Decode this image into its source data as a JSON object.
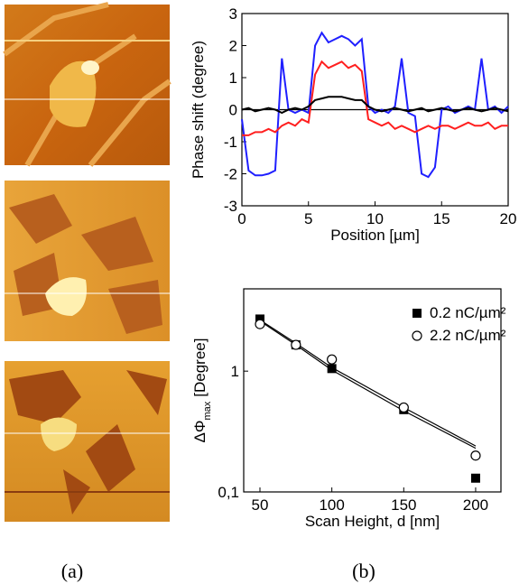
{
  "panel_labels": [
    "(a)",
    "(b)"
  ],
  "chart_data": [
    {
      "type": "line",
      "x_label": "Position  [µm]",
      "y_label": "Phase shift (degree)",
      "x": [
        0,
        0.5,
        1,
        1.5,
        2,
        2.5,
        3,
        3.5,
        4,
        4.5,
        5,
        5.5,
        6,
        6.5,
        7,
        7.5,
        8,
        8.5,
        9,
        9.5,
        10,
        10.5,
        11,
        11.5,
        12,
        12.5,
        13,
        13.5,
        14,
        14.5,
        15,
        15.5,
        16,
        16.5,
        17,
        17.5,
        18,
        18.5,
        19,
        19.5,
        20
      ],
      "series": [
        {
          "color": "#1f1fff",
          "values": [
            -0.3,
            -1.9,
            -2.05,
            -2.05,
            -2.0,
            -1.9,
            1.6,
            0.0,
            -0.1,
            0.0,
            -0.1,
            2.0,
            2.4,
            2.1,
            2.2,
            2.3,
            2.2,
            2.0,
            2.2,
            0.1,
            -0.1,
            0.0,
            -0.1,
            0.1,
            1.6,
            -0.1,
            -0.2,
            -2.0,
            -2.1,
            -1.8,
            0.0,
            0.1,
            -0.1,
            0.0,
            0.1,
            0.0,
            1.6,
            0.0,
            0.1,
            -0.1,
            0.1
          ]
        },
        {
          "color": "#ff1f1f",
          "values": [
            -0.8,
            -0.8,
            -0.7,
            -0.7,
            -0.6,
            -0.7,
            -0.5,
            -0.4,
            -0.5,
            -0.3,
            -0.4,
            1.1,
            1.5,
            1.3,
            1.4,
            1.5,
            1.3,
            1.4,
            1.2,
            -0.3,
            -0.4,
            -0.5,
            -0.4,
            -0.6,
            -0.5,
            -0.6,
            -0.7,
            -0.6,
            -0.5,
            -0.6,
            -0.5,
            -0.5,
            -0.6,
            -0.5,
            -0.4,
            -0.5,
            -0.5,
            -0.4,
            -0.6,
            -0.5,
            -0.5
          ]
        },
        {
          "color": "#000000",
          "values": [
            0.0,
            0.05,
            -0.05,
            0.0,
            0.05,
            0.0,
            -0.1,
            0.0,
            0.05,
            0.0,
            0.1,
            0.3,
            0.35,
            0.4,
            0.4,
            0.4,
            0.35,
            0.3,
            0.3,
            0.1,
            0.0,
            -0.05,
            0.0,
            0.05,
            0.0,
            -0.05,
            0.0,
            0.05,
            -0.05,
            0.0,
            0.05,
            0.0,
            -0.05,
            0.0,
            0.05,
            0.0,
            -0.05,
            0.0,
            0.05,
            0.0,
            -0.05
          ]
        }
      ],
      "xlim": [
        0,
        20
      ],
      "xticks": [
        0,
        5,
        10,
        15,
        20
      ],
      "ylim": [
        -3,
        3
      ],
      "yticks": [
        -3,
        -2,
        -1,
        0,
        1,
        2,
        3
      ],
      "zero_line": true
    },
    {
      "type": "scatter",
      "x_label": "Scan Height, d [nm]",
      "y_label": [
        "ΔΦ",
        "max",
        "[Degree]"
      ],
      "x": [
        50,
        75,
        100,
        150,
        200
      ],
      "series": [
        {
          "name": "0.2 nC/µm²",
          "marker": "square",
          "color": "#000000",
          "values": [
            2.7,
            1.65,
            1.05,
            0.48,
            0.13
          ],
          "fit": [
            2.6,
            1.65,
            1.02,
            0.47,
            0.23
          ]
        },
        {
          "name": "2.2 nC/µm²",
          "marker": "circle",
          "color": "#000000",
          "values": [
            2.45,
            1.65,
            1.25,
            0.5,
            0.2
          ],
          "fit": [
            2.65,
            1.7,
            1.07,
            0.5,
            0.24
          ]
        }
      ],
      "xlim": [
        38.7,
        217.6
      ],
      "xticks": [
        50,
        100,
        150,
        200
      ],
      "ylim": [
        0.1,
        4.8
      ],
      "yticks": [
        {
          "value": 0.1,
          "label": "0,1"
        },
        1
      ],
      "log_y": true,
      "legend": "top-right"
    }
  ]
}
